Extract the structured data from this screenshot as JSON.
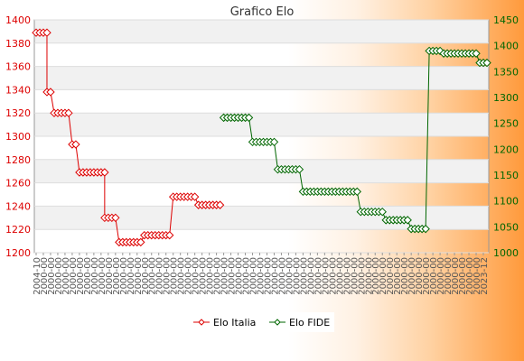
{
  "chart_data": {
    "type": "line",
    "title": "Grafico Elo",
    "xlabel": "",
    "ylabel": "",
    "ylabel_right": "",
    "ylim": [
      1200,
      1400
    ],
    "y2lim": [
      1000,
      1450
    ],
    "yticks": [
      1200,
      1220,
      1240,
      1260,
      1280,
      1300,
      1320,
      1340,
      1360,
      1380,
      1400
    ],
    "y2ticks": [
      1000,
      1050,
      1100,
      1150,
      1200,
      1250,
      1300,
      1350,
      1400,
      1450
    ],
    "grid": true,
    "legend_position": "bottom",
    "colors": {
      "italia": "#dd0000",
      "fide": "#006600"
    },
    "series": [
      {
        "name": "Elo Italia",
        "axis": "left",
        "segments": [
          {
            "x_from": 0,
            "x_to": 3,
            "value": 1389
          },
          {
            "x_from": 3,
            "x_to": 4,
            "value": 1338
          },
          {
            "x_from": 5,
            "x_to": 9,
            "value": 1320
          },
          {
            "x_from": 10,
            "x_to": 11,
            "value": 1293
          },
          {
            "x_from": 12,
            "x_to": 19,
            "value": 1269
          },
          {
            "x_from": 19,
            "x_to": 22,
            "value": 1230
          },
          {
            "x_from": 23,
            "x_to": 29,
            "value": 1209
          },
          {
            "x_from": 30,
            "x_to": 37,
            "value": 1215
          },
          {
            "x_from": 38,
            "x_to": 44,
            "value": 1248
          },
          {
            "x_from": 45,
            "x_to": 51,
            "value": 1241
          }
        ]
      },
      {
        "name": "Elo FIDE",
        "axis": "right",
        "segments": [
          {
            "x_from": 52,
            "x_to": 59,
            "value": 1261
          },
          {
            "x_from": 60,
            "x_to": 66,
            "value": 1214
          },
          {
            "x_from": 67,
            "x_to": 73,
            "value": 1161
          },
          {
            "x_from": 74,
            "x_to": 89,
            "value": 1118
          },
          {
            "x_from": 90,
            "x_to": 96,
            "value": 1079
          },
          {
            "x_from": 97,
            "x_to": 103,
            "value": 1063
          },
          {
            "x_from": 104,
            "x_to": 108,
            "value": 1046
          },
          {
            "x_from": 109,
            "x_to": 112,
            "value": 1390
          },
          {
            "x_from": 113,
            "x_to": 122,
            "value": 1385
          },
          {
            "x_from": 123,
            "x_to": 125,
            "value": 1367
          }
        ]
      }
    ],
    "x_count": 126,
    "x_tick_labels_note": "dense overlapping date labels, unreadable",
    "first_tick_label": "2004-10",
    "last_tick_label": "2023-12"
  }
}
